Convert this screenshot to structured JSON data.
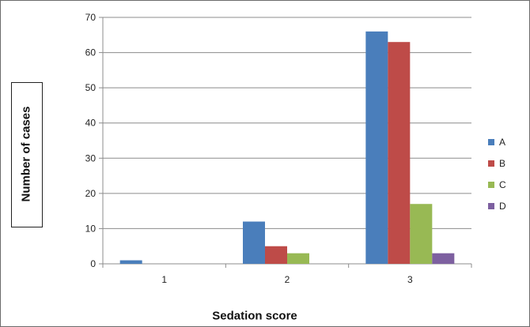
{
  "chart_data": {
    "type": "bar",
    "title": "",
    "xlabel": "Sedation score",
    "ylabel": "Number of cases",
    "categories": [
      "1",
      "2",
      "3"
    ],
    "series": [
      {
        "name": "A",
        "color": "#4a7ebb",
        "values": [
          1,
          12,
          66
        ]
      },
      {
        "name": "B",
        "color": "#be4b48",
        "values": [
          0,
          5,
          63
        ]
      },
      {
        "name": "C",
        "color": "#98b954",
        "values": [
          0,
          3,
          17
        ]
      },
      {
        "name": "D",
        "color": "#7d60a0",
        "values": [
          0,
          0,
          3
        ]
      }
    ],
    "ylim": [
      0,
      70
    ],
    "yticks": [
      0,
      10,
      20,
      30,
      40,
      50,
      60,
      70
    ],
    "grid": "horizontal",
    "legend_position": "right"
  }
}
